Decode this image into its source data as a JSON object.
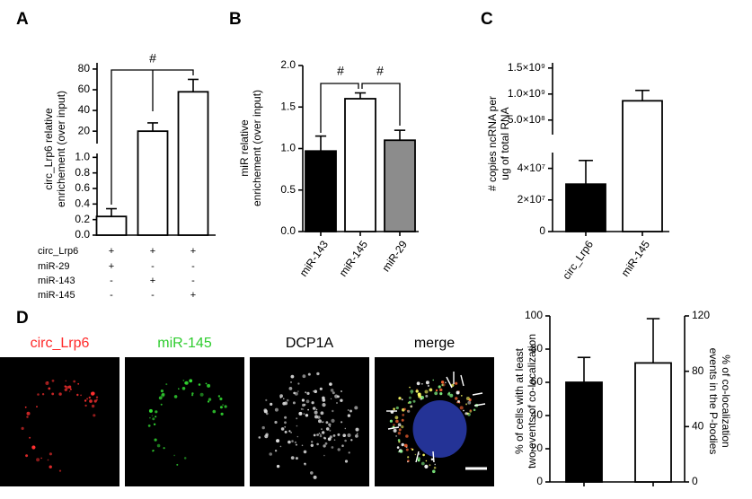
{
  "chart_data": [
    {
      "panel": "A",
      "type": "bar",
      "ylabel": [
        "circ_Lrp6 relative",
        "enrichement (over input)"
      ],
      "categories": [
        null,
        null,
        null
      ],
      "values": [
        0.24,
        20,
        58
      ],
      "errors": [
        0.1,
        8,
        12
      ],
      "colors": [
        "#ffffff",
        "#ffffff",
        "#ffffff"
      ],
      "y_segments": [
        {
          "ylim": [
            0,
            1.05
          ],
          "yticks": [
            {
              "value": 0,
              "label": "0.0"
            },
            0.2,
            0.4,
            0.6,
            0.8,
            {
              "value": 1,
              "label": "1.0"
            }
          ]
        },
        {
          "ylim": [
            8,
            86
          ],
          "yticks": [
            20,
            40,
            60,
            80
          ]
        }
      ],
      "annotations": [
        "#"
      ],
      "conditions": [
        {
          "label": "circ_Lrp6",
          "marks": [
            "+",
            "+",
            "+"
          ]
        },
        {
          "label": "miR-29",
          "marks": [
            "+",
            "-",
            "-"
          ]
        },
        {
          "label": "miR-143",
          "marks": [
            "-",
            "+",
            "-"
          ]
        },
        {
          "label": "miR-145",
          "marks": [
            "-",
            "-",
            "+"
          ]
        }
      ]
    },
    {
      "panel": "B",
      "type": "bar",
      "ylabel": [
        "miR relative",
        "enrichement (over input)"
      ],
      "categories": [
        "miR-143",
        "miR-145",
        "miR-29"
      ],
      "values": [
        0.97,
        1.6,
        1.1
      ],
      "errors": [
        0.18,
        0.07,
        0.12
      ],
      "colors": [
        "#000000",
        "#ffffff",
        "#8c8c8c"
      ],
      "y_segments": [
        {
          "ylim": [
            0,
            2
          ],
          "yticks": [
            {
              "value": 0,
              "label": "0.0"
            },
            0.5,
            {
              "value": 1,
              "label": "1.0"
            },
            1.5,
            {
              "value": 2,
              "label": "2.0"
            }
          ]
        }
      ],
      "annotations": [
        "#",
        "#"
      ]
    },
    {
      "panel": "C",
      "type": "bar",
      "ylabel": [
        "# copies ncRNA per",
        "ug of total RNA"
      ],
      "categories": [
        "circ_Lrp6",
        "miR-145"
      ],
      "values": [
        30000000,
        870000000
      ],
      "errors": [
        15000000,
        200000000
      ],
      "colors": [
        "#000000",
        "#ffffff"
      ],
      "y_segments": [
        {
          "ylim": [
            0,
            50000000
          ],
          "yticks": [
            0,
            {
              "value": 20000000,
              "label": "2×10⁷"
            },
            {
              "value": 40000000,
              "label": "4×10⁷"
            }
          ]
        },
        {
          "ylim": [
            220000000,
            1600000000
          ],
          "yticks": [
            {
              "value": 500000000,
              "label": "5.0×10⁸"
            },
            {
              "value": 1000000000,
              "label": "1.0×10⁹"
            },
            {
              "value": 1500000000,
              "label": "1.5×10⁹"
            }
          ]
        }
      ]
    },
    {
      "panel": "D",
      "type": "bar",
      "ylabel": [
        "% of cells with at least",
        "two events of co-localization"
      ],
      "y2label": [
        "% of co-localization",
        "events in the P-bodies"
      ],
      "categories": [
        null,
        null
      ],
      "series": [
        {
          "values": [
            60,
            null
          ],
          "errors": [
            15,
            null
          ],
          "color": "#000000"
        },
        {
          "values": [
            null,
            86
          ],
          "errors": [
            null,
            32
          ],
          "color": "#ffffff",
          "axis": "y2"
        }
      ],
      "ylim": [
        0,
        100
      ],
      "yticks": [
        0,
        20,
        40,
        60,
        80,
        100
      ],
      "y2lim": [
        0,
        120
      ],
      "y2ticks": [
        0,
        40,
        80,
        120
      ]
    }
  ],
  "micrographs": [
    {
      "label": "circ_Lrp6",
      "color": "#ff2a2a"
    },
    {
      "label": "miR-145",
      "color": "#2ecc2e"
    },
    {
      "label": "DCP1A",
      "color": "#000000"
    },
    {
      "label": "merge",
      "color": "#000000"
    }
  ]
}
